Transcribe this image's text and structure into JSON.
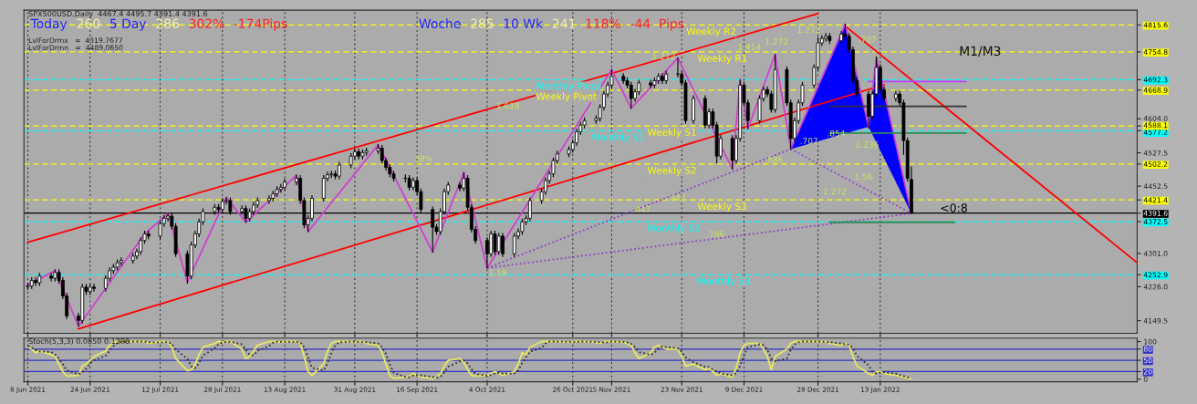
{
  "chart_data": [
    {
      "type": "candlestick",
      "title": "SPX500USD,Daily  4467.4 4495.7 4391.4 4391.6",
      "subtitle": "LvlForDrmx   =  4319.7677\nLvlForDrmn   =  4489.0650",
      "x": [
        "2021-06-08",
        "2021-06-09",
        "2021-06-10",
        "2021-06-11",
        "2021-06-14",
        "2021-06-15",
        "2021-06-16",
        "2021-06-17",
        "2021-06-18",
        "2021-06-21",
        "2021-06-22",
        "2021-06-23",
        "2021-06-24",
        "2021-06-25",
        "2021-06-28",
        "2021-06-29",
        "2021-06-30",
        "2021-07-01",
        "2021-07-02",
        "2021-07-05",
        "2021-07-06",
        "2021-07-07",
        "2021-07-08",
        "2021-07-09",
        "2021-07-12",
        "2021-07-13",
        "2021-07-14",
        "2021-07-15",
        "2021-07-16",
        "2021-07-19",
        "2021-07-20",
        "2021-07-21",
        "2021-07-22",
        "2021-07-23",
        "2021-07-26",
        "2021-07-27",
        "2021-07-28",
        "2021-07-29",
        "2021-07-30",
        "2021-08-02",
        "2021-08-03",
        "2021-08-04",
        "2021-08-05",
        "2021-08-06",
        "2021-08-09",
        "2021-08-10",
        "2021-08-11",
        "2021-08-12",
        "2021-08-13",
        "2021-08-16",
        "2021-08-17",
        "2021-08-18",
        "2021-08-19",
        "2021-08-20",
        "2021-08-23",
        "2021-08-24",
        "2021-08-25",
        "2021-08-26",
        "2021-08-27",
        "2021-08-30",
        "2021-08-31",
        "2021-09-01",
        "2021-09-02",
        "2021-09-03",
        "2021-09-06",
        "2021-09-07",
        "2021-09-08",
        "2021-09-09",
        "2021-09-10",
        "2021-09-13",
        "2021-09-14",
        "2021-09-15",
        "2021-09-16",
        "2021-09-17",
        "2021-09-20",
        "2021-09-21",
        "2021-09-22",
        "2021-09-23",
        "2021-09-24",
        "2021-09-27",
        "2021-09-28",
        "2021-09-29",
        "2021-09-30",
        "2021-10-01",
        "2021-10-04",
        "2021-10-05",
        "2021-10-06",
        "2021-10-07",
        "2021-10-08",
        "2021-10-11",
        "2021-10-12",
        "2021-10-13",
        "2021-10-14",
        "2021-10-15",
        "2021-10-18",
        "2021-10-19",
        "2021-10-20",
        "2021-10-21",
        "2021-10-22",
        "2021-10-25",
        "2021-10-26",
        "2021-10-27",
        "2021-10-28",
        "2021-10-29",
        "2021-11-01",
        "2021-11-02",
        "2021-11-03",
        "2021-11-04",
        "2021-11-05",
        "2021-11-08",
        "2021-11-09",
        "2021-11-10",
        "2021-11-11",
        "2021-11-12",
        "2021-11-15",
        "2021-11-16",
        "2021-11-17",
        "2021-11-18",
        "2021-11-19",
        "2021-11-22",
        "2021-11-23",
        "2021-11-24",
        "2021-11-26",
        "2021-11-29",
        "2021-11-30",
        "2021-12-01",
        "2021-12-02",
        "2021-12-03",
        "2021-12-06",
        "2021-12-07",
        "2021-12-08",
        "2021-12-09",
        "2021-12-10",
        "2021-12-13",
        "2021-12-14",
        "2021-12-15",
        "2021-12-16",
        "2021-12-17",
        "2021-12-20",
        "2021-12-21",
        "2021-12-22",
        "2021-12-23",
        "2021-12-24",
        "2021-12-27",
        "2021-12-28",
        "2021-12-29",
        "2021-12-30",
        "2021-12-31",
        "2022-01-03",
        "2022-01-04",
        "2022-01-05",
        "2022-01-06",
        "2022-01-07",
        "2022-01-10",
        "2022-01-11",
        "2022-01-12",
        "2022-01-13",
        "2022-01-14",
        "2022-01-17",
        "2022-01-18",
        "2022-01-19",
        "2022-01-20",
        "2022-01-21"
      ],
      "ohlc": [
        [
          4226,
          4234,
          4220,
          4228
        ],
        [
          4228,
          4246,
          4222,
          4240
        ],
        [
          4240,
          4246,
          4229,
          4235
        ],
        [
          4235,
          4256,
          4229,
          4250
        ],
        [
          4250,
          4256,
          4239,
          4245
        ],
        [
          4245,
          4264,
          4239,
          4258
        ],
        [
          4258,
          4264,
          4234,
          4240
        ],
        [
          4240,
          4246,
          4199,
          4205
        ],
        [
          4205,
          4211,
          4154,
          4160
        ],
        [
          4160,
          4166,
          4137,
          4150
        ],
        [
          4150,
          4231,
          4144,
          4225
        ],
        [
          4225,
          4231,
          4209,
          4215
        ],
        [
          4215,
          4231,
          4209,
          4225
        ],
        [
          4225,
          4231,
          4216,
          4222
        ],
        [
          4222,
          4251,
          4216,
          4245
        ],
        [
          4245,
          4268,
          4239,
          4262
        ],
        [
          4262,
          4276,
          4256,
          4270
        ],
        [
          4270,
          4286,
          4264,
          4280
        ],
        [
          4280,
          4291,
          4274,
          4285
        ],
        [
          4285,
          4301,
          4279,
          4295
        ],
        [
          4295,
          4311,
          4289,
          4305
        ],
        [
          4305,
          4336,
          4299,
          4330
        ],
        [
          4330,
          4351,
          4324,
          4345
        ],
        [
          4345,
          4351,
          4334,
          4340
        ],
        [
          4340,
          4374,
          4334,
          4368
        ],
        [
          4368,
          4386,
          4362,
          4380
        ],
        [
          4380,
          4391,
          4374,
          4385
        ],
        [
          4385,
          4391,
          4356,
          4362
        ],
        [
          4362,
          4368,
          4294,
          4300
        ],
        [
          4300,
          4306,
          4234,
          4250
        ],
        [
          4250,
          4326,
          4244,
          4320
        ],
        [
          4320,
          4351,
          4314,
          4345
        ],
        [
          4345,
          4378,
          4339,
          4372
        ],
        [
          4372,
          4401,
          4366,
          4395
        ],
        [
          4395,
          4411,
          4389,
          4405
        ],
        [
          4405,
          4411,
          4394,
          4400
        ],
        [
          4400,
          4424,
          4394,
          4418
        ],
        [
          4418,
          4427,
          4412,
          4420
        ],
        [
          4420,
          4426,
          4389,
          4395
        ],
        [
          4395,
          4408,
          4389,
          4402
        ],
        [
          4402,
          4408,
          4371,
          4380
        ],
        [
          4380,
          4401,
          4374,
          4395
        ],
        [
          4395,
          4416,
          4389,
          4410
        ],
        [
          4410,
          4426,
          4404,
          4420
        ],
        [
          4420,
          4431,
          4414,
          4425
        ],
        [
          4425,
          4441,
          4419,
          4435
        ],
        [
          4435,
          4451,
          4429,
          4445
        ],
        [
          4445,
          4456,
          4439,
          4450
        ],
        [
          4450,
          4468,
          4444,
          4462
        ],
        [
          4462,
          4477,
          4456,
          4470
        ],
        [
          4470,
          4476,
          4414,
          4420
        ],
        [
          4420,
          4426,
          4359,
          4365
        ],
        [
          4365,
          4386,
          4350,
          4380
        ],
        [
          4380,
          4431,
          4374,
          4425
        ],
        [
          4425,
          4476,
          4419,
          4470
        ],
        [
          4470,
          4484,
          4464,
          4478
        ],
        [
          4478,
          4486,
          4472,
          4480
        ],
        [
          4480,
          4486,
          4469,
          4475
        ],
        [
          4475,
          4506,
          4469,
          4500
        ],
        [
          4500,
          4526,
          4494,
          4520
        ],
        [
          4520,
          4536,
          4514,
          4530
        ],
        [
          4530,
          4536,
          4514,
          4520
        ],
        [
          4520,
          4534,
          4514,
          4528
        ],
        [
          4528,
          4538,
          4522,
          4532
        ],
        [
          4532,
          4546,
          4526,
          4538
        ],
        [
          4538,
          4544,
          4504,
          4510
        ],
        [
          4510,
          4516,
          4489,
          4495
        ],
        [
          4495,
          4501,
          4474,
          4480
        ],
        [
          4480,
          4486,
          4464,
          4470
        ],
        [
          4470,
          4478,
          4462,
          4470
        ],
        [
          4470,
          4476,
          4444,
          4450
        ],
        [
          4450,
          4471,
          4444,
          4465
        ],
        [
          4465,
          4471,
          4434,
          4440
        ],
        [
          4440,
          4446,
          4394,
          4400
        ],
        [
          4400,
          4406,
          4304,
          4360
        ],
        [
          4360,
          4366,
          4344,
          4350
        ],
        [
          4350,
          4401,
          4344,
          4395
        ],
        [
          4395,
          4446,
          4389,
          4440
        ],
        [
          4440,
          4461,
          4434,
          4455
        ],
        [
          4455,
          4461,
          4442,
          4448
        ],
        [
          4448,
          4483,
          4442,
          4470
        ],
        [
          4470,
          4476,
          4399,
          4405
        ],
        [
          4405,
          4411,
          4349,
          4355
        ],
        [
          4355,
          4361,
          4324,
          4330
        ],
        [
          4330,
          4336,
          4268,
          4300
        ],
        [
          4300,
          4351,
          4294,
          4345
        ],
        [
          4345,
          4351,
          4299,
          4305
        ],
        [
          4305,
          4346,
          4299,
          4340
        ],
        [
          4340,
          4346,
          4294,
          4300
        ],
        [
          4300,
          4346,
          4294,
          4340
        ],
        [
          4340,
          4356,
          4334,
          4350
        ],
        [
          4350,
          4378,
          4344,
          4372
        ],
        [
          4372,
          4386,
          4366,
          4380
        ],
        [
          4380,
          4426,
          4374,
          4420
        ],
        [
          4420,
          4446,
          4414,
          4440
        ],
        [
          4440,
          4471,
          4434,
          4465
        ],
        [
          4465,
          4486,
          4459,
          4480
        ],
        [
          4480,
          4516,
          4474,
          4510
        ],
        [
          4510,
          4531,
          4504,
          4525
        ],
        [
          4525,
          4541,
          4519,
          4535
        ],
        [
          4535,
          4556,
          4529,
          4550
        ],
        [
          4550,
          4581,
          4544,
          4575
        ],
        [
          4575,
          4596,
          4569,
          4590
        ],
        [
          4590,
          4606,
          4584,
          4600
        ],
        [
          4600,
          4611,
          4594,
          4605
        ],
        [
          4605,
          4636,
          4599,
          4630
        ],
        [
          4630,
          4666,
          4624,
          4660
        ],
        [
          4660,
          4686,
          4654,
          4680
        ],
        [
          4680,
          4715,
          4674,
          4700
        ],
        [
          4700,
          4706,
          4684,
          4690
        ],
        [
          4690,
          4696,
          4674,
          4680
        ],
        [
          4680,
          4686,
          4628,
          4650
        ],
        [
          4650,
          4671,
          4644,
          4665
        ],
        [
          4665,
          4691,
          4659,
          4685
        ],
        [
          4685,
          4691,
          4674,
          4680
        ],
        [
          4680,
          4696,
          4674,
          4690
        ],
        [
          4690,
          4706,
          4684,
          4700
        ],
        [
          4700,
          4706,
          4684,
          4690
        ],
        [
          4690,
          4711,
          4684,
          4705
        ],
        [
          4705,
          4741,
          4699,
          4705
        ],
        [
          4705,
          4711,
          4679,
          4685
        ],
        [
          4685,
          4691,
          4594,
          4600
        ],
        [
          4600,
          4656,
          4594,
          4650
        ],
        [
          4650,
          4656,
          4584,
          4590
        ],
        [
          4590,
          4626,
          4584,
          4620
        ],
        [
          4620,
          4626,
          4584,
          4590
        ],
        [
          4590,
          4596,
          4505,
          4520
        ],
        [
          4520,
          4566,
          4514,
          4560
        ],
        [
          4560,
          4566,
          4491,
          4510
        ],
        [
          4510,
          4566,
          4504,
          4560
        ],
        [
          4560,
          4692,
          4554,
          4680
        ],
        [
          4680,
          4686,
          4634,
          4640
        ],
        [
          4640,
          4646,
          4582,
          4600
        ],
        [
          4600,
          4656,
          4594,
          4650
        ],
        [
          4650,
          4676,
          4644,
          4670
        ],
        [
          4670,
          4676,
          4654,
          4660
        ],
        [
          4660,
          4666,
          4619,
          4625
        ],
        [
          4625,
          4749,
          4619,
          4715
        ],
        [
          4715,
          4721,
          4634,
          4640
        ],
        [
          4640,
          4646,
          4536,
          4560
        ],
        [
          4560,
          4606,
          4554,
          4600
        ],
        [
          4600,
          4646,
          4594,
          4640
        ],
        [
          4640,
          4686,
          4634,
          4680
        ],
        [
          4680,
          4726,
          4674,
          4720
        ],
        [
          4720,
          4787,
          4714,
          4775
        ],
        [
          4775,
          4791,
          4769,
          4785
        ],
        [
          4785,
          4796,
          4779,
          4790
        ],
        [
          4790,
          4796,
          4774,
          4780
        ],
        [
          4780,
          4801,
          4774,
          4795
        ],
        [
          4795,
          4817,
          4784,
          4790
        ],
        [
          4790,
          4796,
          4754,
          4760
        ],
        [
          4760,
          4766,
          4684,
          4690
        ],
        [
          4690,
          4696,
          4654,
          4660
        ],
        [
          4660,
          4666,
          4583,
          4610
        ],
        [
          4610,
          4666,
          4604,
          4660
        ],
        [
          4660,
          4743,
          4654,
          4720
        ],
        [
          4720,
          4726,
          4664,
          4670
        ],
        [
          4670,
          4676,
          4644,
          4650
        ],
        [
          4650,
          4666,
          4644,
          4660
        ],
        [
          4660,
          4666,
          4634,
          4640
        ],
        [
          4640,
          4646,
          4524,
          4555
        ],
        [
          4555,
          4561,
          4464,
          4470
        ],
        [
          4467.4,
          4495.7,
          4391.4,
          4391.6
        ]
      ],
      "series": [
        {
          "type": "line",
          "x": [
            "2021-06-08",
            "2021-12-28"
          ],
          "values": [
            4326,
            4841
          ],
          "color": "#ff0000"
        },
        {
          "type": "line",
          "x": [
            "2021-06-21",
            "2022-01-14"
          ],
          "values": [
            4131,
            4681
          ],
          "color": "#ff0000"
        },
        {
          "type": "line",
          "x": [
            "2022-01-04",
            "2022-03-20"
          ],
          "values": [
            4813,
            4280
          ],
          "color": "#ff0000"
        },
        {
          "type": "line",
          "x": [
            "2021-06-08",
            "2021-06-15",
            "2021-06-21",
            "2021-07-08",
            "2021-07-14",
            "2021-07-19",
            "2021-07-29",
            "2021-08-03",
            "2021-08-16",
            "2021-08-19",
            "2021-09-06",
            "2021-09-20",
            "2021-09-28",
            "2021-10-04",
            "2021-11-05",
            "2021-11-10",
            "2021-11-22",
            "2021-12-06",
            "2021-12-08",
            "2021-12-10",
            "2021-12-17",
            "2021-12-21",
            "2022-01-04",
            "2022-01-10",
            "2022-01-12",
            "2022-01-21"
          ],
          "values": [
            4230,
            4262,
            4137,
            4345,
            4391,
            4236,
            4427,
            4371,
            4477,
            4350,
            4546,
            4304,
            4483,
            4268,
            4715,
            4628,
            4741,
            4491,
            4692,
            4582,
            4749,
            4536,
            4817,
            4586,
            4743,
            4391
          ],
          "color": "#d040d0"
        },
        {
          "type": "line",
          "line_style": "dotted",
          "x": [
            "2021-10-04",
            "2022-01-21"
          ],
          "values": [
            4268,
            4391
          ],
          "color": "#9040c0"
        },
        {
          "type": "line",
          "line_style": "dotted",
          "x": [
            "2021-10-04",
            "2021-12-21"
          ],
          "values": [
            4268,
            4536
          ],
          "color": "#9040c0"
        },
        {
          "type": "line",
          "line_style": "dotted",
          "x": [
            "2021-12-21",
            "2022-01-21"
          ],
          "values": [
            4536,
            4391
          ],
          "color": "#9040c0"
        },
        {
          "type": "area",
          "x": [
            "2021-12-21",
            "2022-01-04",
            "2022-01-10",
            "2021-12-21"
          ],
          "values": [
            4536,
            4817,
            4586,
            4536
          ],
          "color": "#0000ff"
        },
        {
          "type": "area",
          "x": [
            "2022-01-10",
            "2022-01-12",
            "2022-01-21",
            "2022-01-10"
          ],
          "values": [
            4586,
            4743,
            4391,
            4586
          ],
          "color": "#0000ff"
        },
        {
          "type": "line",
          "x": [
            "2022-01-10",
            "2022-02-04"
          ],
          "values": [
            4688,
            4688
          ],
          "color": "#c040ff"
        },
        {
          "type": "line",
          "x": [
            "2021-12-31",
            "2022-02-04"
          ],
          "values": [
            4632,
            4632
          ],
          "color": "#333333"
        },
        {
          "type": "line",
          "x": [
            "2021-12-31",
            "2022-02-04"
          ],
          "values": [
            4572,
            4572
          ],
          "color": "#2e8b57"
        },
        {
          "type": "line",
          "x": [
            "2021-12-31",
            "2022-02-01"
          ],
          "values": [
            4371,
            4371
          ],
          "color": "#2e8b57"
        }
      ],
      "xlim": [
        "2021-06-07",
        "2022-03-20"
      ],
      "xticks": [
        {
          "value": "2021-06-08",
          "label": null
        },
        {
          "value": "2021-06-24",
          "label": null
        },
        {
          "value": "2021-07-12",
          "label": null
        },
        {
          "value": "2021-07-28",
          "label": null
        },
        {
          "value": "2021-08-13",
          "label": null
        },
        {
          "value": "2021-08-31",
          "label": null
        },
        {
          "value": "2021-09-16",
          "label": null
        },
        {
          "value": "2021-10-04",
          "label": null
        },
        {
          "value": "2021-10-26",
          "label": null
        },
        {
          "value": "2021-11-05",
          "label": null
        },
        {
          "value": "2021-11-23",
          "label": null
        },
        {
          "value": "2021-12-09",
          "label": null
        },
        {
          "value": "2021-12-28",
          "label": null
        },
        {
          "value": "2022-01-13",
          "label": null
        }
      ],
      "ylim": [
        4121,
        4849
      ],
      "yticks": [
        4149.5,
        {
          "value": 4226.0,
          "label": "4226.0"
        },
        4252.9,
        {
          "value": 4301.0,
          "label": "4301.0"
        },
        4372.5,
        4391.6,
        4421.4,
        4452.5,
        4502.2,
        4527.5,
        4577.2,
        4588.1,
        {
          "value": 4604.0,
          "label": "4604.0"
        },
        4668.9,
        4692.3,
        4754.8,
        4815.6
      ],
      "tick_labels": "y",
      "grid": "x",
      "ref_lines": [
        {
          "axis": "y",
          "value": 4815.6,
          "label": "Weekly R2",
          "color": "#ffff00",
          "line_style": "dashed"
        },
        {
          "axis": "y",
          "value": 4754.8,
          "label": "Weekly R1",
          "color": "#ffff00",
          "line_style": "dashed"
        },
        {
          "axis": "y",
          "value": 4692.3,
          "label": "Monthly Pivot",
          "color": "#00ffff",
          "line_style": "dashed"
        },
        {
          "axis": "y",
          "value": 4668.9,
          "label": "Weekly Pivot",
          "color": "#ffff00",
          "line_style": "dashed"
        },
        {
          "axis": "y",
          "value": 4588.1,
          "label": "Weekly S1",
          "color": "#ffff00",
          "line_style": "dashed"
        },
        {
          "axis": "y",
          "value": 4577.2,
          "label": "Monthly S1",
          "color": "#00ffff",
          "line_style": "dashed"
        },
        {
          "axis": "y",
          "value": 4502.2,
          "label": "Weekly S2",
          "color": "#ffff00",
          "line_style": "dashed"
        },
        {
          "axis": "y",
          "value": 4421.4,
          "label": "Weekly S3",
          "color": "#ffff00",
          "line_style": "dashed"
        },
        {
          "axis": "y",
          "value": 4391.6,
          "label": null,
          "color": "#000000",
          "line_style": "solid"
        },
        {
          "axis": "y",
          "value": 4372.5,
          "label": "Monthly S2",
          "color": "#00ffff",
          "line_style": "dashed"
        },
        {
          "axis": "y",
          "value": 4252.9,
          "label": "Monthly S3",
          "color": "#00ffff",
          "line_style": "dashed"
        }
      ],
      "annotations": [
        "Today",
        "260",
        "5 Day",
        "286",
        "302%",
        "-174Pips",
        "Woche",
        "285",
        "10 Wk",
        "241",
        "118%",
        "-44  Pips",
        "M1/M3",
        {
          "text": "38%",
          "x": "2021-09-15",
          "y": 4501
        },
        {
          "text": "1.19",
          "x": "2021-10-04",
          "y": 4268
        },
        {
          "text": "1.618",
          "x": "2021-10-06",
          "y": 4620
        },
        {
          "text": "1.272",
          "x": "2021-11-15",
          "y": 4732
        },
        {
          "text": "1.414",
          "x": "2021-12-07",
          "y": 4753
        },
        {
          "text": "1.272",
          "x": "2021-12-14",
          "y": 4765
        },
        {
          "text": "1.272",
          "x": "2021-12-29",
          "y": 4791
        },
        {
          "text": ".707",
          "x": "2022-01-07",
          "y": 4769
        },
        {
          "text": ".854",
          "x": "2021-12-30",
          "y": 4558
        },
        {
          "text": ".707",
          "x": "2021-12-23",
          "y": 4541
        },
        {
          "text": ".886",
          "x": "2021-12-14",
          "y": 4499
        },
        {
          "text": "2.236",
          "x": "2022-01-13",
          "y": 4533
        },
        {
          "text": "1.56",
          "x": "2022-01-06",
          "y": 4461
        },
        {
          "text": "1.272",
          "x": "2021-12-29",
          "y": 4427
        },
        {
          "text": ".447",
          "x": "2021-11-19",
          "y": 4413
        },
        {
          "text": ".447",
          "x": "2021-11-10",
          "y": 4387
        },
        {
          "text": ".786",
          "x": "2021-11-29",
          "y": 4331
        },
        {
          "text": "<0:8",
          "x": "2022-01-28",
          "y": 4386
        }
      ]
    },
    {
      "type": "line",
      "title": "Stoch(5,3,3) 0.0850 0.1398",
      "x": [
        "2021-06-08",
        "2021-06-09",
        "2021-06-10",
        "2021-06-11",
        "2021-06-14",
        "2021-06-15",
        "2021-06-16",
        "2021-06-17",
        "2021-06-18",
        "2021-06-21",
        "2021-06-22",
        "2021-06-23",
        "2021-06-24",
        "2021-06-25",
        "2021-06-28",
        "2021-06-29",
        "2021-06-30",
        "2021-07-01",
        "2021-07-02",
        "2021-07-05",
        "2021-07-06",
        "2021-07-07",
        "2021-07-08",
        "2021-07-09",
        "2021-07-12",
        "2021-07-13",
        "2021-07-14",
        "2021-07-15",
        "2021-07-16",
        "2021-07-19",
        "2021-07-20",
        "2021-07-21",
        "2021-07-22",
        "2021-07-23",
        "2021-07-26",
        "2021-07-27",
        "2021-07-28",
        "2021-07-29",
        "2021-07-30",
        "2021-08-02",
        "2021-08-03",
        "2021-08-04",
        "2021-08-05",
        "2021-08-06",
        "2021-08-09",
        "2021-08-10",
        "2021-08-11",
        "2021-08-12",
        "2021-08-13",
        "2021-08-16",
        "2021-08-17",
        "2021-08-18",
        "2021-08-19",
        "2021-08-20",
        "2021-08-23",
        "2021-08-24",
        "2021-08-25",
        "2021-08-26",
        "2021-08-27",
        "2021-08-30",
        "2021-08-31",
        "2021-09-01",
        "2021-09-02",
        "2021-09-03",
        "2021-09-06",
        "2021-09-07",
        "2021-09-08",
        "2021-09-09",
        "2021-09-10",
        "2021-09-13",
        "2021-09-14",
        "2021-09-15",
        "2021-09-16",
        "2021-09-17",
        "2021-09-20",
        "2021-09-21",
        "2021-09-22",
        "2021-09-23",
        "2021-09-24",
        "2021-09-27",
        "2021-09-28",
        "2021-09-29",
        "2021-09-30",
        "2021-10-01",
        "2021-10-04",
        "2021-10-05",
        "2021-10-06",
        "2021-10-07",
        "2021-10-08",
        "2021-10-11",
        "2021-10-12",
        "2021-10-13",
        "2021-10-14",
        "2021-10-15",
        "2021-10-18",
        "2021-10-19",
        "2021-10-20",
        "2021-10-21",
        "2021-10-22",
        "2021-10-25",
        "2021-10-26",
        "2021-10-27",
        "2021-10-28",
        "2021-10-29",
        "2021-11-01",
        "2021-11-02",
        "2021-11-03",
        "2021-11-04",
        "2021-11-05",
        "2021-11-08",
        "2021-11-09",
        "2021-11-10",
        "2021-11-11",
        "2021-11-12",
        "2021-11-15",
        "2021-11-16",
        "2021-11-17",
        "2021-11-18",
        "2021-11-19",
        "2021-11-22",
        "2021-11-23",
        "2021-11-24",
        "2021-11-26",
        "2021-11-29",
        "2021-11-30",
        "2021-12-01",
        "2021-12-02",
        "2021-12-03",
        "2021-12-06",
        "2021-12-07",
        "2021-12-08",
        "2021-12-09",
        "2021-12-10",
        "2021-12-13",
        "2021-12-14",
        "2021-12-15",
        "2021-12-16",
        "2021-12-17",
        "2021-12-20",
        "2021-12-21",
        "2021-12-22",
        "2021-12-23",
        "2021-12-24",
        "2021-12-27",
        "2021-12-28",
        "2021-12-29",
        "2021-12-30",
        "2021-12-31",
        "2022-01-03",
        "2022-01-04",
        "2022-01-05",
        "2022-01-06",
        "2022-01-07",
        "2022-01-10",
        "2022-01-11",
        "2022-01-12",
        "2022-01-13",
        "2022-01-14",
        "2022-01-17",
        "2022-01-18",
        "2022-01-19",
        "2022-01-20",
        "2022-01-21"
      ],
      "series": [
        {
          "color": "#e8e860",
          "line_style": "solid",
          "values": [
            85,
            80,
            70,
            75,
            65,
            60,
            40,
            20,
            8,
            10,
            35,
            40,
            50,
            60,
            75,
            90,
            98,
            100,
            100,
            100,
            100,
            100,
            100,
            95,
            100,
            100,
            98,
            85,
            55,
            22,
            25,
            40,
            65,
            85,
            95,
            100,
            98,
            100,
            100,
            80,
            55,
            60,
            75,
            90,
            100,
            100,
            100,
            98,
            100,
            100,
            95,
            60,
            20,
            10,
            40,
            75,
            95,
            100,
            100,
            100,
            98,
            100,
            100,
            95,
            90,
            70,
            40,
            10,
            2,
            5,
            8,
            15,
            10,
            5,
            2,
            5,
            15,
            35,
            50,
            55,
            45,
            25,
            10,
            8,
            10,
            15,
            20,
            15,
            10,
            20,
            40,
            70,
            65,
            85,
            100,
            100,
            100,
            100,
            100,
            98,
            100,
            100,
            100,
            100,
            98,
            95,
            100,
            100,
            100,
            98,
            95,
            90,
            70,
            55,
            70,
            85,
            90,
            85,
            80,
            80,
            60,
            35,
            40,
            25,
            30,
            20,
            10,
            15,
            5,
            30,
            70,
            90,
            95,
            95,
            80,
            60,
            25,
            60,
            80,
            95,
            100,
            100,
            100,
            100,
            100,
            98,
            100,
            95,
            90,
            95,
            90,
            60,
            35,
            15,
            10,
            20,
            20,
            15,
            10,
            8,
            5,
            2,
            1
          ]
        },
        {
          "color": "#303030",
          "line_style": "dotted",
          "values": [
            88,
            84,
            78,
            74,
            72,
            66,
            55,
            40,
            23,
            13,
            18,
            28,
            42,
            50,
            62,
            75,
            88,
            96,
            99,
            100,
            100,
            100,
            100,
            98,
            98,
            98,
            99,
            94,
            79,
            54,
            34,
            29,
            43,
            63,
            82,
            93,
            98,
            99,
            99,
            93,
            78,
            65,
            63,
            75,
            88,
            97,
            100,
            99,
            99,
            99,
            98,
            85,
            58,
            30,
            23,
            42,
            70,
            90,
            98,
            100,
            99,
            99,
            99,
            98,
            95,
            85,
            67,
            40,
            17,
            6,
            5,
            10,
            11,
            10,
            6,
            4,
            7,
            18,
            33,
            47,
            50,
            42,
            27,
            14,
            9,
            11,
            15,
            17,
            15,
            15,
            23,
            43,
            58,
            73,
            83,
            95,
            100,
            100,
            100,
            99,
            99,
            99,
            100,
            100,
            99,
            98,
            98,
            98,
            100,
            99,
            98,
            94,
            85,
            72,
            65,
            70,
            82,
            87,
            85,
            82,
            73,
            58,
            45,
            33,
            32,
            25,
            20,
            15,
            10,
            17,
            35,
            63,
            85,
            93,
            90,
            78,
            55,
            48,
            55,
            78,
            92,
            98,
            100,
            100,
            100,
            99,
            99,
            98,
            95,
            93,
            92,
            82,
            62,
            37,
            20,
            15,
            17,
            18,
            15,
            11,
            8,
            5,
            3
          ]
        }
      ],
      "xlim": [
        "2021-06-07",
        "2022-03-20"
      ],
      "xticks": [
        {
          "value": "2021-06-08",
          "label": "8 Jun 2021"
        },
        {
          "value": "2021-06-24",
          "label": "24 Jun 2021"
        },
        {
          "value": "2021-07-12",
          "label": "12 Jul 2021"
        },
        {
          "value": "2021-07-28",
          "label": "28 Jul 2021"
        },
        {
          "value": "2021-08-13",
          "label": "13 Aug 2021"
        },
        {
          "value": "2021-08-31",
          "label": "31 Aug 2021"
        },
        {
          "value": "2021-09-16",
          "label": "16 Sep 2021"
        },
        {
          "value": "2021-10-04",
          "label": "4 Oct 2021"
        },
        {
          "value": "2021-10-26",
          "label": "26 Oct 2021"
        },
        {
          "value": "2021-11-05",
          "label": "5 Nov 2021"
        },
        {
          "value": "2021-11-23",
          "label": "23 Nov 2021"
        },
        {
          "value": "2021-12-09",
          "label": "9 Dec 2021"
        },
        {
          "value": "2021-12-28",
          "label": "28 Dec 2021"
        },
        {
          "value": "2022-01-13",
          "label": "13 Jan 2022"
        }
      ],
      "ylim": [
        -7,
        109
      ],
      "yticks": [
        0,
        20,
        50,
        80,
        100
      ],
      "grid": "x",
      "ref_lines": [
        {
          "axis": "y",
          "value": 80,
          "label": null,
          "color": "#3030c8",
          "line_style": "solid"
        },
        {
          "axis": "y",
          "value": 50,
          "label": null,
          "color": "#3030c8",
          "line_style": "solid"
        },
        {
          "axis": "y",
          "value": 20,
          "label": null,
          "color": "#3030c8",
          "line_style": "solid"
        }
      ]
    }
  ]
}
